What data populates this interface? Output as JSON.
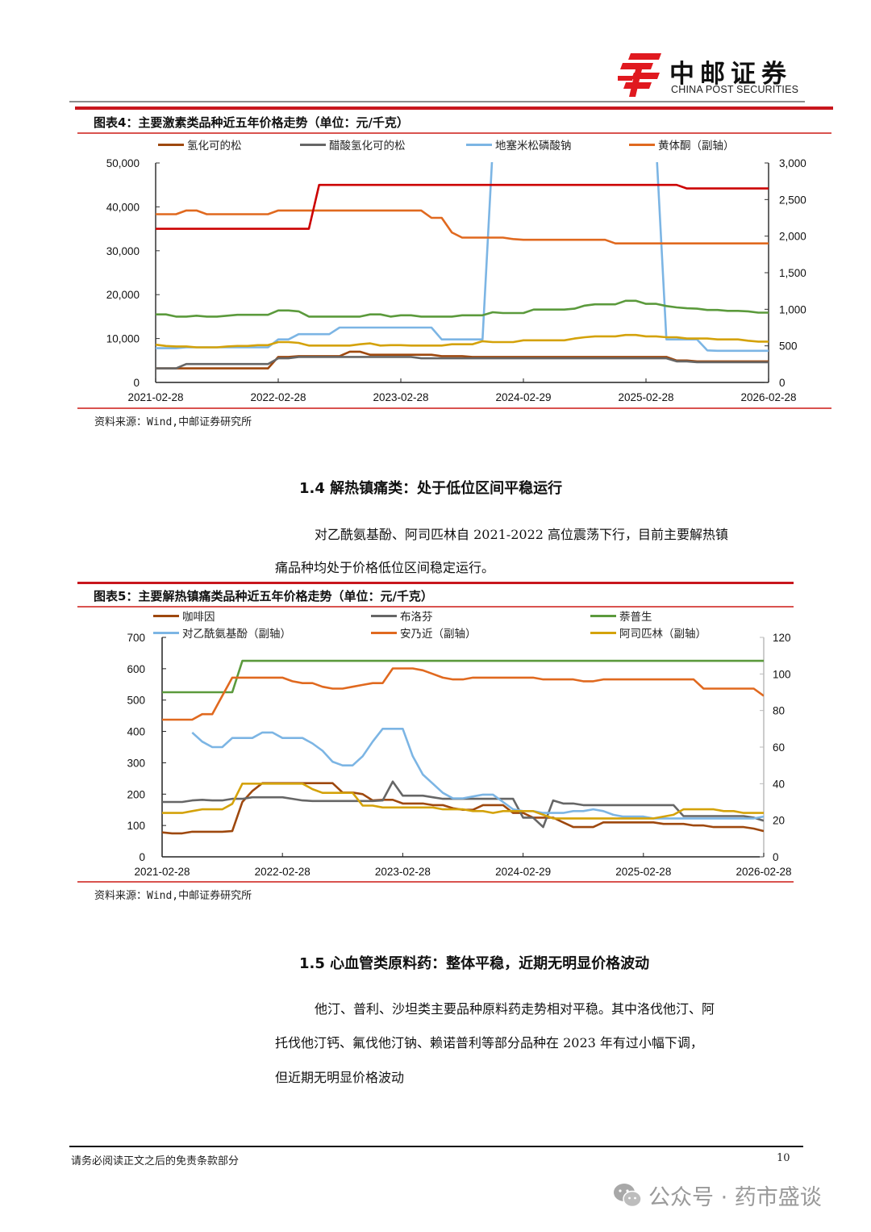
{
  "header": {
    "brand_cn": "中邮证券",
    "brand_en": "CHINA POST SECURITIES",
    "logo_color": "#e0191f"
  },
  "figure4": {
    "title": "图表4：主要激素类品种近五年价格走势（单位：元/千克）",
    "legend": [
      {
        "label": "氢化可的松",
        "color": "#9e480e"
      },
      {
        "label": "醋酸氢化可的松",
        "color": "#666666"
      },
      {
        "label": "地塞米松磷酸钠",
        "color": "#7cb5e4"
      },
      {
        "label": "黄体酮（副轴）",
        "color": "#e0691f"
      }
    ],
    "source": "资料来源：Wind,中邮证券研究所"
  },
  "section14": {
    "title": "1.4 解热镇痛类：处于低位区间平稳运行",
    "para_line1": "对乙酰氨基酚、阿司匹林自 2021-2022 高位震荡下行，目前主要解热镇",
    "para_line2": "痛品种均处于价格低位区间稳定运行。"
  },
  "figure5": {
    "title": "图表5：主要解热镇痛类品种近五年价格走势（单位：元/千克）",
    "legend": [
      {
        "label": "咖啡因",
        "color": "#9e480e"
      },
      {
        "label": "布洛芬",
        "color": "#666666"
      },
      {
        "label": "萘普生",
        "color": "#5b9a3c"
      },
      {
        "label": "对乙酰氨基酚（副轴）",
        "color": "#7cb5e4"
      },
      {
        "label": "安乃近（副轴）",
        "color": "#e0691f"
      },
      {
        "label": "阿司匹林（副轴）",
        "color": "#d4a20a"
      }
    ],
    "source": "资料来源：Wind,中邮证券研究所"
  },
  "section15": {
    "title": "1.5 心血管类原料药：整体平稳，近期无明显价格波动",
    "para_line1": "他汀、普利、沙坦类主要品种原料药走势相对平稳。其中洛伐他汀、阿",
    "para_line2": "托伐他汀钙、氟伐他汀钠、赖诺普利等部分品种在 2023 年有过小幅下调，",
    "para_line3": "但近期无明显价格波动"
  },
  "footer": {
    "disclaimer": "请务必阅读正文之后的免责条款部分",
    "page_number": "10"
  },
  "watermark": {
    "text": "公众号 · 药市盛谈",
    "icon": "wechat-icon"
  },
  "chart_data": [
    {
      "type": "line",
      "title": "主要激素类品种近五年价格走势（单位：元/千克）",
      "xlabel": "",
      "ylabel": "元/千克",
      "x_ticks": [
        "2021-02-28",
        "2022-02-28",
        "2023-02-28",
        "2024-02-29",
        "2025-02-28",
        "2026-02-28"
      ],
      "y_ticks_left": [
        "0",
        "10,000",
        "20,000",
        "30,000",
        "40,000",
        "50,000"
      ],
      "y_ticks_right": [
        "0",
        "500",
        "1,000",
        "1,500",
        "2,000",
        "2,500",
        "3,000"
      ],
      "ylim_left": [
        0,
        50000
      ],
      "ylim_right": [
        0,
        3000
      ],
      "grid": false,
      "legend_position": "top",
      "x_points": 61,
      "x_start": "2021-02",
      "x_step": "month",
      "series": [
        {
          "name": "氢化可的松",
          "axis": "left",
          "color": "#9e480e",
          "values": [
            3200,
            3200,
            3200,
            3200,
            3200,
            3200,
            3200,
            3200,
            3200,
            3200,
            3200,
            3200,
            5800,
            5800,
            6000,
            6000,
            6000,
            6000,
            6000,
            7000,
            7000,
            6300,
            6300,
            6300,
            6300,
            6300,
            6300,
            6300,
            6000,
            6000,
            6000,
            5800,
            5800,
            5800,
            5800,
            5800,
            5800,
            5800,
            5800,
            5800,
            5800,
            5800,
            5800,
            5800,
            5800,
            5800,
            5800,
            5800,
            5800,
            5800,
            5800,
            5000,
            5000,
            4800,
            4800,
            4800,
            4800,
            4800,
            4800,
            4800,
            4800
          ]
        },
        {
          "name": "醋酸氢化可的松",
          "axis": "left",
          "color": "#666666",
          "values": [
            3200,
            3200,
            3200,
            4200,
            4200,
            4200,
            4200,
            4200,
            4200,
            4200,
            4200,
            4200,
            5500,
            5500,
            5800,
            5800,
            5800,
            5800,
            5800,
            5800,
            5800,
            5800,
            5800,
            5800,
            5800,
            5800,
            5500,
            5500,
            5500,
            5500,
            5500,
            5500,
            5500,
            5500,
            5500,
            5500,
            5500,
            5500,
            5500,
            5500,
            5500,
            5500,
            5500,
            5500,
            5500,
            5500,
            5500,
            5500,
            5500,
            5500,
            5500,
            4800,
            4800,
            4600,
            4600,
            4600,
            4600,
            4600,
            4600,
            4600,
            4600
          ]
        },
        {
          "name": "地塞米松磷酸钠",
          "axis": "left",
          "color": "#7cb5e4",
          "values": [
            7800,
            7800,
            7800,
            8000,
            8000,
            8000,
            8000,
            8000,
            8000,
            8000,
            8000,
            8000,
            9800,
            9800,
            11000,
            11000,
            11000,
            11000,
            12500,
            12500,
            12500,
            12500,
            12500,
            12500,
            12500,
            12500,
            12500,
            12500,
            9800,
            9800,
            9800,
            9800,
            9800,
            9800,
            9800,
            9800,
            9800,
            9800,
            9800,
            9800,
            9800,
            9800,
            9800,
            9800,
            9800,
            9800,
            9800,
            9800,
            9800,
            9800,
            9800,
            9800,
            9800,
            9800,
            7300,
            7200,
            7200,
            7200,
            7200,
            7200,
            7200
          ],
          "note": "Jumps above chart top (>50,000) from ~2023-11 through ~2025-03"
        },
        {
          "name": "黄体酮（副轴）",
          "axis": "right",
          "color": "#e0691f",
          "values": [
            2300,
            2300,
            2300,
            2350,
            2350,
            2300,
            2300,
            2300,
            2300,
            2300,
            2300,
            2300,
            2350,
            2350,
            2350,
            2350,
            2350,
            2350,
            2350,
            2350,
            2350,
            2350,
            2350,
            2350,
            2350,
            2350,
            2350,
            2250,
            2250,
            2050,
            1980,
            1980,
            1980,
            1980,
            1980,
            1960,
            1950,
            1950,
            1950,
            1950,
            1950,
            1950,
            1950,
            1950,
            1950,
            1900,
            1900,
            1900,
            1900,
            1900,
            1900,
            1900,
            1900,
            1900,
            1900,
            1900,
            1900,
            1900,
            1900,
            1900,
            1900
          ]
        },
        {
          "name": "(unlabeled red series)",
          "axis": "left",
          "color": "#cc0000",
          "values": [
            35000,
            35000,
            35000,
            35000,
            35000,
            35000,
            35000,
            35000,
            35000,
            35000,
            35000,
            35000,
            35000,
            35000,
            35000,
            35000,
            45000,
            45000,
            45000,
            45000,
            45000,
            45000,
            45000,
            45000,
            45000,
            45000,
            45000,
            45000,
            45000,
            45000,
            45000,
            45000,
            45000,
            45000,
            45000,
            45000,
            45000,
            45000,
            45000,
            45000,
            45000,
            45000,
            45000,
            45000,
            45000,
            45000,
            45000,
            45000,
            45000,
            45000,
            45000,
            45000,
            44200,
            44200,
            44200,
            44200,
            44200,
            44200,
            44200,
            44200,
            44200
          ]
        },
        {
          "name": "(unlabeled green series)",
          "axis": "left",
          "color": "#5b9a3c",
          "values": [
            15500,
            15500,
            15000,
            15000,
            15200,
            15000,
            15000,
            15200,
            15400,
            15400,
            15400,
            15400,
            16400,
            16400,
            16200,
            15000,
            15000,
            15000,
            15000,
            15000,
            15000,
            15500,
            15500,
            15000,
            15300,
            15300,
            15000,
            15000,
            15000,
            15000,
            15300,
            15300,
            15300,
            16000,
            15800,
            15800,
            15800,
            16600,
            16600,
            16600,
            16600,
            16800,
            17500,
            17800,
            17800,
            17800,
            18600,
            18600,
            17900,
            17900,
            17400,
            17100,
            16900,
            16800,
            16500,
            16500,
            16300,
            16300,
            16200,
            15900,
            15900
          ]
        },
        {
          "name": "(unlabeled gold series)",
          "axis": "left",
          "color": "#d4a20a",
          "values": [
            8600,
            8300,
            8200,
            8200,
            8000,
            8000,
            8000,
            8200,
            8300,
            8300,
            8500,
            8500,
            9200,
            9200,
            9000,
            8400,
            8400,
            8400,
            8400,
            8400,
            8700,
            8900,
            8400,
            8500,
            8500,
            8400,
            8400,
            8400,
            8400,
            8700,
            8700,
            8700,
            9400,
            9200,
            9200,
            9200,
            9600,
            9600,
            9600,
            9600,
            9600,
            10000,
            10300,
            10500,
            10500,
            10500,
            10800,
            10800,
            10500,
            10500,
            10300,
            10300,
            10000,
            10000,
            10000,
            9800,
            9800,
            9800,
            9500,
            9300,
            9300
          ]
        }
      ]
    },
    {
      "type": "line",
      "title": "主要解热镇痛类品种近五年价格走势（单位：元/千克）",
      "xlabel": "",
      "ylabel": "元/千克",
      "x_ticks": [
        "2021-02-28",
        "2022-02-28",
        "2023-02-28",
        "2024-02-29",
        "2025-02-28",
        "2026-02-28"
      ],
      "y_ticks_left": [
        "0",
        "100",
        "200",
        "300",
        "400",
        "500",
        "600",
        "700"
      ],
      "y_ticks_right": [
        "0",
        "20",
        "40",
        "60",
        "80",
        "100",
        "120"
      ],
      "ylim_left": [
        0,
        700
      ],
      "ylim_right": [
        0,
        120
      ],
      "grid": false,
      "legend_position": "top",
      "x_points": 61,
      "x_start": "2021-02",
      "x_step": "month",
      "series": [
        {
          "name": "咖啡因",
          "axis": "left",
          "color": "#9e480e",
          "values": [
            78,
            75,
            75,
            80,
            80,
            80,
            80,
            82,
            175,
            210,
            235,
            235,
            235,
            235,
            235,
            235,
            235,
            235,
            205,
            205,
            200,
            180,
            182,
            182,
            170,
            170,
            170,
            165,
            165,
            155,
            150,
            150,
            165,
            165,
            165,
            140,
            140,
            125,
            125,
            125,
            110,
            95,
            95,
            95,
            110,
            110,
            110,
            110,
            110,
            110,
            105,
            105,
            105,
            100,
            100,
            95,
            95,
            95,
            95,
            90,
            82
          ]
        },
        {
          "name": "布洛芬",
          "axis": "left",
          "color": "#666666",
          "values": [
            175,
            175,
            175,
            180,
            182,
            180,
            180,
            185,
            185,
            190,
            190,
            190,
            190,
            185,
            180,
            178,
            178,
            178,
            178,
            178,
            178,
            178,
            180,
            240,
            195,
            195,
            195,
            190,
            185,
            185,
            185,
            185,
            185,
            185,
            185,
            185,
            125,
            125,
            95,
            180,
            170,
            170,
            165,
            165,
            165,
            165,
            165,
            165,
            165,
            165,
            165,
            165,
            130,
            130,
            130,
            130,
            130,
            130,
            130,
            125,
            115
          ]
        },
        {
          "name": "萘普生",
          "axis": "left",
          "color": "#5b9a3c",
          "values": [
            525,
            525,
            525,
            525,
            525,
            525,
            525,
            525,
            625,
            625,
            625,
            625,
            625,
            625,
            625,
            625,
            625,
            625,
            625,
            625,
            625,
            625,
            625,
            625,
            625,
            625,
            625,
            625,
            625,
            625,
            625,
            625,
            625,
            625,
            625,
            625,
            625,
            625,
            625,
            625,
            625,
            625,
            625,
            625,
            625,
            625,
            625,
            625,
            625,
            625,
            625,
            625,
            625,
            625,
            625,
            625,
            625,
            625,
            625,
            625,
            625
          ]
        },
        {
          "name": "对乙酰氨基酚（副轴）",
          "axis": "right",
          "color": "#7cb5e4",
          "values": [
            null,
            null,
            null,
            68,
            63,
            60,
            60,
            65,
            65,
            65,
            68,
            68,
            65,
            65,
            65,
            62,
            58,
            52,
            50,
            50,
            55,
            63,
            70,
            70,
            70,
            55,
            45,
            40,
            35,
            32,
            32,
            33,
            34,
            34,
            30,
            26,
            25,
            25,
            24,
            24,
            24,
            25,
            25,
            26,
            25,
            23,
            22,
            22,
            22,
            21,
            21,
            21,
            21,
            21,
            21,
            21,
            21,
            21,
            21,
            21,
            22
          ]
        },
        {
          "name": "安乃近（副轴）",
          "axis": "right",
          "color": "#e0691f",
          "values": [
            75,
            75,
            75,
            75,
            78,
            78,
            88,
            98,
            98,
            98,
            98,
            98,
            98,
            96,
            95,
            95,
            93,
            92,
            92,
            93,
            94,
            95,
            95,
            103,
            103,
            103,
            102,
            100,
            98,
            97,
            97,
            98,
            98,
            98,
            98,
            98,
            98,
            98,
            97,
            97,
            97,
            97,
            96,
            96,
            97,
            97,
            97,
            97,
            97,
            97,
            97,
            97,
            97,
            97,
            92,
            92,
            92,
            92,
            92,
            92,
            88
          ]
        },
        {
          "name": "阿司匹林（副轴）",
          "axis": "right",
          "color": "#d4a20a",
          "values": [
            24,
            24,
            24,
            25,
            26,
            26,
            26,
            29,
            40,
            40,
            40,
            40,
            40,
            40,
            40,
            37,
            35,
            35,
            35,
            35,
            28,
            28,
            27,
            27,
            27,
            27,
            27,
            27,
            26,
            26,
            26,
            25,
            25,
            24,
            25,
            25,
            25,
            25,
            23,
            21,
            21,
            21,
            21,
            21,
            21,
            21,
            21,
            21,
            21,
            21,
            22,
            23,
            26,
            26,
            26,
            26,
            25,
            25,
            24,
            24,
            24
          ]
        }
      ]
    }
  ]
}
